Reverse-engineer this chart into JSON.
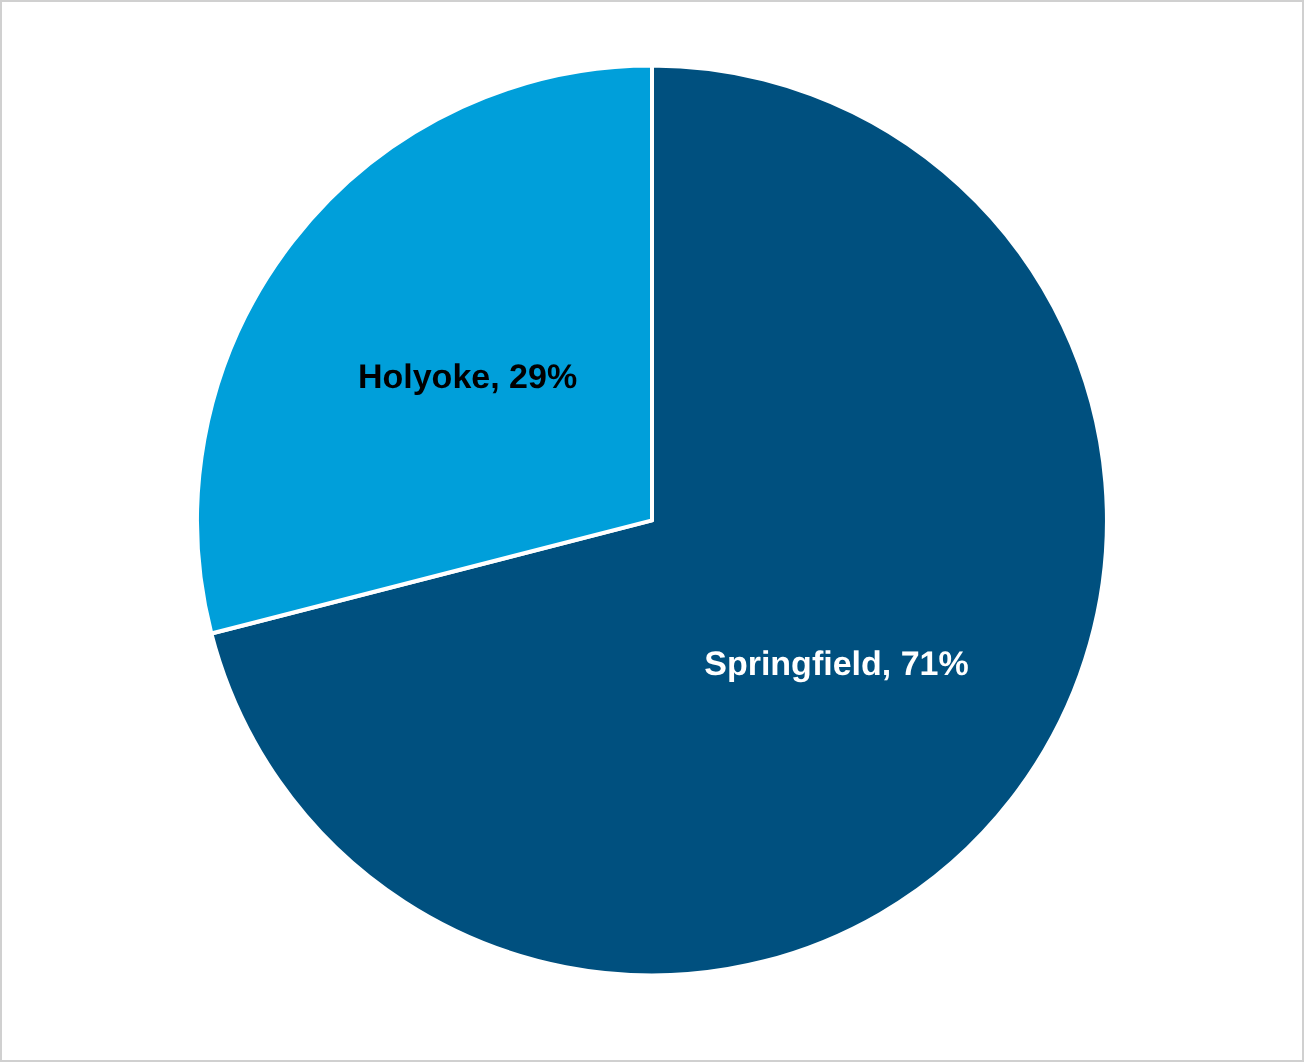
{
  "chart_data": {
    "type": "pie",
    "categories": [
      "Springfield",
      "Holyoke"
    ],
    "values": [
      71,
      29
    ],
    "colors": [
      "#00507f",
      "#009fda"
    ],
    "value_labels": [
      "71%",
      "29%"
    ],
    "legend": false
  }
}
